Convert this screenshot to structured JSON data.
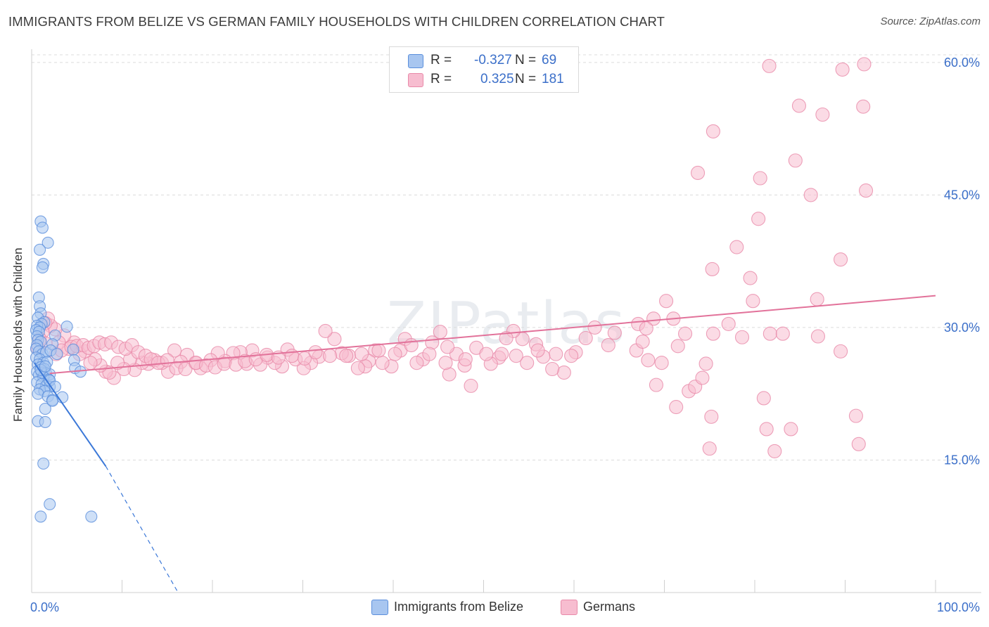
{
  "title": "IMMIGRANTS FROM BELIZE VS GERMAN FAMILY HOUSEHOLDS WITH CHILDREN CORRELATION CHART",
  "source": "Source: ZipAtlas.com",
  "watermark": "ZIPatlas",
  "legend": {
    "r_label": "R =",
    "n_label": "N =",
    "series": [
      {
        "name": "Immigrants from Belize",
        "r": "-0.327",
        "n": "69",
        "fill": "#a8c6f0",
        "stroke": "#5b8fdc"
      },
      {
        "name": "Germans",
        "r": "0.325",
        "n": "181",
        "fill": "#f7bdd0",
        "stroke": "#e98aa9"
      }
    ]
  },
  "chart_data": {
    "type": "scatter",
    "title": "IMMIGRANTS FROM BELIZE VS GERMAN FAMILY HOUSEHOLDS WITH CHILDREN CORRELATION CHART",
    "xlabel": "",
    "ylabel": "Family Households with Children",
    "xlim": [
      0,
      100
    ],
    "ylim": [
      0,
      61.5
    ],
    "x_tick_labels": [
      "0.0%",
      "100.0%"
    ],
    "y_ticks": [
      15,
      30,
      45,
      60
    ],
    "y_tick_labels": [
      "15.0%",
      "30.0%",
      "45.0%",
      "60.0%"
    ],
    "series": [
      {
        "name": "Immigrants from Belize",
        "color": "#5b8fdc",
        "fill": "#a8c6f0",
        "trend": {
          "x": [
            0.3,
            8.2
          ],
          "y": [
            26.0,
            14.3
          ],
          "dashed_extension_to": [
            16.2,
            0.0
          ],
          "color": "#3b78d8"
        },
        "points": [
          [
            1.0,
            42.0
          ],
          [
            1.2,
            41.3
          ],
          [
            1.8,
            39.6
          ],
          [
            0.9,
            38.8
          ],
          [
            1.3,
            37.2
          ],
          [
            1.2,
            36.8
          ],
          [
            0.8,
            33.4
          ],
          [
            0.9,
            32.4
          ],
          [
            1.0,
            31.6
          ],
          [
            0.7,
            31.1
          ],
          [
            1.4,
            30.6
          ],
          [
            1.1,
            30.4
          ],
          [
            0.6,
            30.2
          ],
          [
            0.9,
            30.0
          ],
          [
            0.5,
            29.7
          ],
          [
            0.8,
            29.5
          ],
          [
            0.6,
            29.0
          ],
          [
            0.7,
            28.6
          ],
          [
            1.0,
            28.4
          ],
          [
            0.6,
            28.0
          ],
          [
            0.5,
            27.6
          ],
          [
            0.8,
            27.3
          ],
          [
            1.2,
            27.0
          ],
          [
            1.6,
            27.2
          ],
          [
            0.5,
            26.6
          ],
          [
            0.9,
            26.4
          ],
          [
            1.3,
            26.0
          ],
          [
            1.7,
            26.1
          ],
          [
            0.7,
            25.8
          ],
          [
            1.0,
            25.5
          ],
          [
            1.4,
            25.3
          ],
          [
            0.6,
            25.0
          ],
          [
            1.1,
            24.9
          ],
          [
            1.6,
            24.8
          ],
          [
            2.0,
            24.7
          ],
          [
            0.8,
            24.6
          ],
          [
            1.3,
            24.4
          ],
          [
            1.9,
            24.1
          ],
          [
            0.6,
            23.8
          ],
          [
            1.1,
            23.6
          ],
          [
            1.6,
            23.4
          ],
          [
            2.0,
            23.3
          ],
          [
            0.9,
            23.0
          ],
          [
            1.4,
            22.8
          ],
          [
            0.7,
            22.5
          ],
          [
            1.8,
            22.2
          ],
          [
            2.3,
            21.8
          ],
          [
            1.5,
            20.8
          ],
          [
            0.7,
            19.4
          ],
          [
            1.5,
            19.3
          ],
          [
            4.6,
            27.5
          ],
          [
            4.7,
            26.3
          ],
          [
            3.9,
            30.1
          ],
          [
            2.6,
            29.1
          ],
          [
            2.3,
            28.1
          ],
          [
            2.1,
            27.4
          ],
          [
            2.8,
            27.0
          ],
          [
            4.8,
            25.4
          ],
          [
            5.4,
            25.0
          ],
          [
            2.0,
            24.0
          ],
          [
            2.6,
            23.3
          ],
          [
            3.4,
            22.1
          ],
          [
            2.3,
            21.7
          ],
          [
            1.3,
            14.6
          ],
          [
            2.0,
            10.0
          ],
          [
            1.0,
            8.6
          ],
          [
            6.6,
            8.6
          ],
          [
            1.0,
            25.2
          ],
          [
            1.5,
            25.6
          ]
        ]
      },
      {
        "name": "Germans",
        "color": "#e98aa9",
        "fill": "#f7bdd0",
        "trend": {
          "x": [
            2.0,
            100.0
          ],
          "y": [
            24.8,
            33.6
          ],
          "color": "#e2729a"
        },
        "points": [
          [
            81.6,
            59.6
          ],
          [
            89.7,
            59.2
          ],
          [
            92.1,
            59.8
          ],
          [
            84.9,
            55.1
          ],
          [
            87.5,
            54.1
          ],
          [
            92.0,
            55.0
          ],
          [
            75.4,
            52.2
          ],
          [
            84.5,
            48.9
          ],
          [
            73.7,
            47.5
          ],
          [
            80.6,
            46.9
          ],
          [
            86.2,
            45.0
          ],
          [
            92.3,
            45.5
          ],
          [
            80.4,
            42.3
          ],
          [
            78.0,
            39.1
          ],
          [
            75.3,
            36.6
          ],
          [
            79.5,
            35.6
          ],
          [
            89.5,
            37.7
          ],
          [
            86.9,
            33.2
          ],
          [
            70.2,
            33.0
          ],
          [
            79.8,
            33.0
          ],
          [
            68.8,
            31.0
          ],
          [
            71.0,
            31.0
          ],
          [
            67.1,
            30.4
          ],
          [
            68.0,
            29.9
          ],
          [
            77.1,
            30.4
          ],
          [
            75.4,
            29.3
          ],
          [
            78.6,
            28.9
          ],
          [
            81.7,
            29.3
          ],
          [
            83.1,
            29.3
          ],
          [
            87.0,
            29.0
          ],
          [
            89.5,
            27.3
          ],
          [
            91.2,
            20.0
          ],
          [
            91.5,
            16.8
          ],
          [
            75.2,
            19.9
          ],
          [
            84.0,
            18.5
          ],
          [
            81.3,
            18.5
          ],
          [
            75.0,
            16.3
          ],
          [
            82.2,
            16.0
          ],
          [
            81.0,
            22.0
          ],
          [
            69.1,
            23.5
          ],
          [
            71.3,
            21.0
          ],
          [
            72.7,
            22.8
          ],
          [
            73.4,
            23.3
          ],
          [
            74.2,
            24.3
          ],
          [
            74.6,
            25.9
          ],
          [
            66.9,
            27.4
          ],
          [
            67.6,
            28.4
          ],
          [
            68.2,
            26.3
          ],
          [
            69.7,
            26.0
          ],
          [
            71.5,
            27.9
          ],
          [
            72.3,
            29.3
          ],
          [
            64.5,
            29.4
          ],
          [
            63.8,
            28.0
          ],
          [
            62.3,
            30.0
          ],
          [
            61.3,
            28.8
          ],
          [
            60.2,
            27.2
          ],
          [
            59.7,
            26.8
          ],
          [
            58.9,
            24.9
          ],
          [
            58.0,
            27.0
          ],
          [
            57.6,
            25.3
          ],
          [
            56.6,
            26.7
          ],
          [
            55.8,
            28.1
          ],
          [
            54.8,
            26.0
          ],
          [
            54.3,
            28.7
          ],
          [
            53.3,
            29.6
          ],
          [
            52.5,
            28.8
          ],
          [
            51.7,
            26.6
          ],
          [
            50.8,
            25.9
          ],
          [
            49.2,
            27.7
          ],
          [
            48.6,
            23.4
          ],
          [
            47.9,
            25.7
          ],
          [
            47.0,
            27.0
          ],
          [
            46.2,
            24.7
          ],
          [
            45.8,
            26.0
          ],
          [
            45.2,
            29.5
          ],
          [
            44.3,
            28.3
          ],
          [
            43.3,
            26.4
          ],
          [
            42.6,
            26.0
          ],
          [
            41.3,
            28.7
          ],
          [
            40.8,
            27.4
          ],
          [
            39.8,
            25.6
          ],
          [
            38.8,
            26.0
          ],
          [
            38.0,
            27.4
          ],
          [
            37.3,
            26.2
          ],
          [
            36.9,
            25.6
          ],
          [
            36.1,
            25.4
          ],
          [
            35.1,
            26.8
          ],
          [
            34.3,
            27.1
          ],
          [
            33.5,
            28.7
          ],
          [
            32.5,
            29.6
          ],
          [
            31.8,
            26.7
          ],
          [
            30.9,
            26.0
          ],
          [
            30.1,
            25.4
          ],
          [
            29.2,
            26.4
          ],
          [
            28.3,
            27.5
          ],
          [
            27.7,
            25.6
          ],
          [
            26.9,
            26.0
          ],
          [
            26.1,
            26.6
          ],
          [
            25.3,
            25.8
          ],
          [
            24.4,
            27.4
          ],
          [
            23.8,
            25.9
          ],
          [
            23.1,
            27.2
          ],
          [
            22.3,
            27.1
          ],
          [
            21.4,
            26.2
          ],
          [
            20.6,
            27.1
          ],
          [
            19.8,
            26.3
          ],
          [
            18.7,
            25.4
          ],
          [
            18.1,
            26.0
          ],
          [
            17.2,
            26.9
          ],
          [
            16.5,
            26.1
          ],
          [
            15.8,
            27.4
          ],
          [
            15.1,
            25.0
          ],
          [
            14.4,
            26.0
          ],
          [
            13.6,
            26.3
          ],
          [
            12.9,
            25.9
          ],
          [
            12.2,
            26.0
          ],
          [
            11.4,
            25.2
          ],
          [
            10.9,
            26.4
          ],
          [
            10.2,
            25.3
          ],
          [
            9.5,
            26.0
          ],
          [
            9.1,
            24.3
          ],
          [
            8.2,
            25.0
          ],
          [
            8.6,
            24.9
          ],
          [
            7.6,
            25.7
          ],
          [
            7.0,
            26.4
          ],
          [
            6.5,
            26.0
          ],
          [
            5.9,
            27.3
          ],
          [
            5.3,
            27.0
          ],
          [
            4.7,
            28.3
          ],
          [
            4.1,
            27.6
          ],
          [
            3.6,
            29.1
          ],
          [
            3.0,
            28.3
          ],
          [
            2.6,
            29.8
          ],
          [
            2.1,
            30.2
          ],
          [
            1.8,
            31.0
          ],
          [
            1.5,
            30.5
          ],
          [
            1.2,
            29.5
          ],
          [
            0.9,
            28.7
          ],
          [
            0.7,
            27.7
          ],
          [
            1.5,
            28.2
          ],
          [
            2.7,
            27.0
          ],
          [
            3.3,
            27.4
          ],
          [
            4.4,
            27.8
          ],
          [
            5.0,
            27.9
          ],
          [
            5.7,
            28.0
          ],
          [
            6.3,
            27.7
          ],
          [
            6.9,
            27.9
          ],
          [
            7.5,
            28.3
          ],
          [
            8.1,
            28.1
          ],
          [
            8.8,
            28.3
          ],
          [
            9.6,
            27.8
          ],
          [
            10.4,
            27.6
          ],
          [
            11.1,
            28.0
          ],
          [
            11.8,
            27.2
          ],
          [
            12.6,
            26.8
          ],
          [
            13.2,
            26.4
          ],
          [
            14.0,
            26.0
          ],
          [
            15.0,
            26.3
          ],
          [
            16.0,
            25.4
          ],
          [
            17.0,
            25.3
          ],
          [
            18.2,
            26.0
          ],
          [
            19.3,
            25.7
          ],
          [
            20.3,
            25.5
          ],
          [
            21.3,
            25.9
          ],
          [
            22.6,
            25.8
          ],
          [
            23.6,
            26.2
          ],
          [
            24.8,
            26.4
          ],
          [
            26.0,
            26.9
          ],
          [
            27.3,
            26.6
          ],
          [
            28.8,
            26.8
          ],
          [
            30.2,
            26.5
          ],
          [
            31.4,
            27.2
          ],
          [
            33.0,
            26.8
          ],
          [
            34.8,
            26.8
          ],
          [
            36.5,
            27.0
          ],
          [
            38.4,
            27.4
          ],
          [
            40.2,
            27.0
          ],
          [
            42.0,
            28.0
          ],
          [
            44.0,
            27.0
          ],
          [
            46.0,
            27.8
          ],
          [
            48.0,
            26.4
          ],
          [
            50.3,
            27.0
          ],
          [
            52.0,
            27.0
          ],
          [
            53.6,
            26.8
          ],
          [
            56.0,
            27.4
          ]
        ]
      }
    ]
  }
}
